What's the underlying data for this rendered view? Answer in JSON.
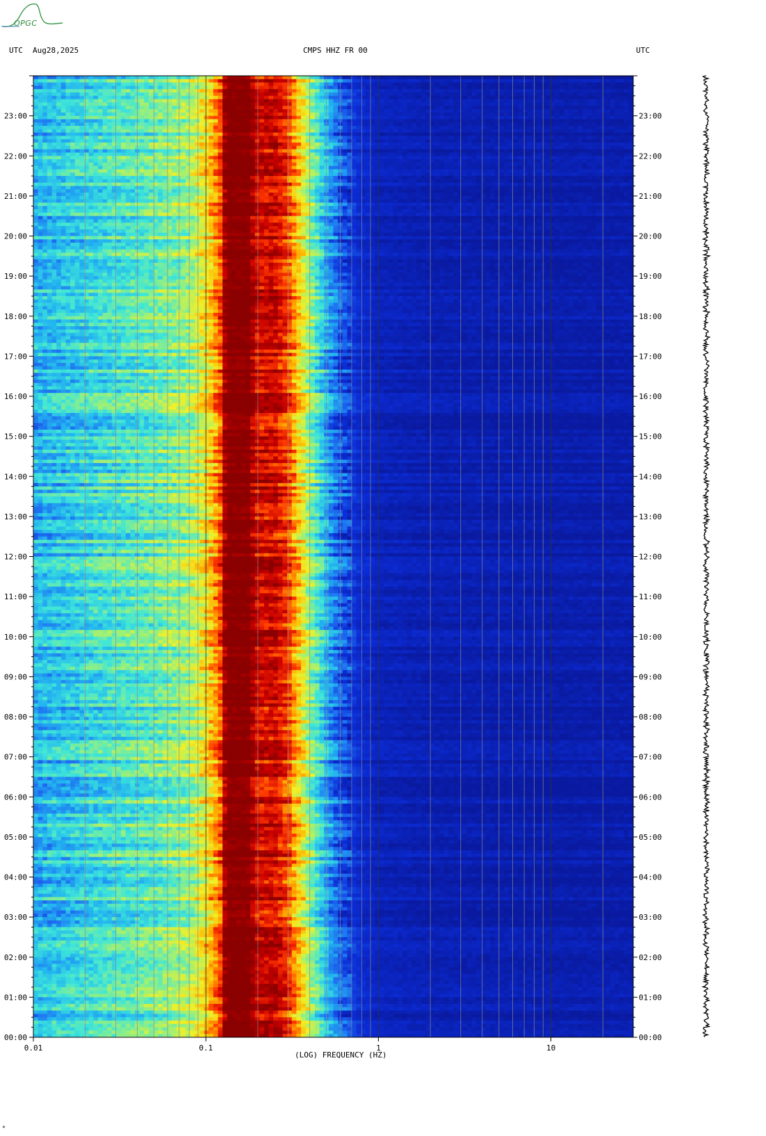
{
  "header": {
    "left_tz": "UTC",
    "date": "Aug28,2025",
    "station": "CMPS HHZ FR 00",
    "right_tz": "UTC"
  },
  "logo": {
    "text": "OPGC"
  },
  "footer": {
    "mark": "*"
  },
  "colors": {
    "background": "#ffffff",
    "low": "#0a1aa0",
    "high": "#8b0000"
  },
  "chart_data": {
    "type": "heatmap",
    "title": "CMPS HHZ FR 00",
    "xlabel": "(LOG) FREQUENCY (HZ)",
    "ylabel": "",
    "x_scale": "log",
    "xlim": [
      0.01,
      30
    ],
    "x_ticks": [
      0.01,
      0.1,
      1,
      10
    ],
    "x_tick_labels": [
      "0.01",
      "0.1",
      "1",
      "10"
    ],
    "ylim_hours": [
      0,
      24
    ],
    "y_ticks": [
      "00:00",
      "01:00",
      "02:00",
      "03:00",
      "04:00",
      "05:00",
      "06:00",
      "07:00",
      "08:00",
      "09:00",
      "10:00",
      "11:00",
      "12:00",
      "13:00",
      "14:00",
      "15:00",
      "16:00",
      "17:00",
      "18:00",
      "19:00",
      "20:00",
      "21:00",
      "22:00",
      "23:00"
    ],
    "colorscale": [
      "#0a1aa0",
      "#0b2cd6",
      "#1e6ef0",
      "#23b4f0",
      "#3fe6d8",
      "#9af07a",
      "#f0f028",
      "#ffb000",
      "#ff3a00",
      "#c80000",
      "#8b0000"
    ],
    "mean_spectrum": [
      {
        "freq": 0.01,
        "level": 0.3
      },
      {
        "freq": 0.024,
        "level": 0.38
      },
      {
        "freq": 0.05,
        "level": 0.44
      },
      {
        "freq": 0.08,
        "level": 0.5
      },
      {
        "freq": 0.1,
        "level": 0.62
      },
      {
        "freq": 0.12,
        "level": 0.75
      },
      {
        "freq": 0.13,
        "level": 1.0
      },
      {
        "freq": 0.18,
        "level": 1.0
      },
      {
        "freq": 0.2,
        "level": 0.88
      },
      {
        "freq": 0.25,
        "level": 0.9
      },
      {
        "freq": 0.3,
        "level": 0.8
      },
      {
        "freq": 0.4,
        "level": 0.5
      },
      {
        "freq": 0.5,
        "level": 0.3
      },
      {
        "freq": 0.6,
        "level": 0.17
      },
      {
        "freq": 0.8,
        "level": 0.08
      },
      {
        "freq": 1,
        "level": 0.05
      },
      {
        "freq": 2,
        "level": 0.03
      },
      {
        "freq": 10,
        "level": 0.02
      },
      {
        "freq": 30,
        "level": 0.02
      }
    ]
  }
}
